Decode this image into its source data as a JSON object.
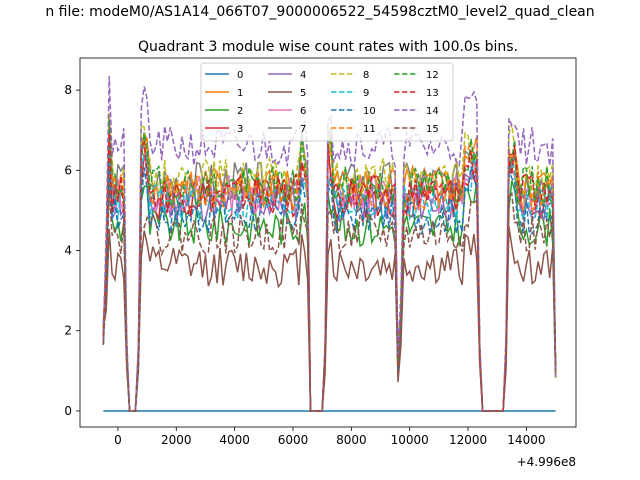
{
  "chart_data": {
    "type": "line",
    "suptitle": "n file: modeM0/AS1A14_066T07_9000006522_54598cztM0_level2_quad_clean",
    "title": "Quadrant 3 module wise count rates with 100.0s bins.",
    "xlabel": "",
    "ylabel": "",
    "x_offset_label": "+4.996e8",
    "xlim": [
      -1300,
      15700
    ],
    "ylim": [
      -0.4,
      8.8
    ],
    "x_ticks": [
      0,
      2000,
      4000,
      6000,
      8000,
      10000,
      12000,
      14000
    ],
    "x_tick_labels": [
      "0",
      "2000",
      "4000",
      "6000",
      "8000",
      "10000",
      "12000",
      "14000"
    ],
    "y_ticks": [
      0,
      2,
      4,
      6,
      8
    ],
    "y_tick_labels": [
      "0",
      "2",
      "4",
      "6",
      "8"
    ],
    "legend_loc": "upper center",
    "legend_ncol": 4,
    "gaps": [
      [
        400,
        600
      ],
      [
        6550,
        7000
      ],
      [
        12500,
        13200
      ]
    ],
    "dip_times": [
      9600,
      9700
    ],
    "series": [
      {
        "name": "0",
        "color": "#1f77b4",
        "dash": false,
        "level": 0.0
      },
      {
        "name": "1",
        "color": "#ff7f0e",
        "dash": false,
        "level": 5.6
      },
      {
        "name": "2",
        "color": "#2ca02c",
        "dash": false,
        "level": 4.6
      },
      {
        "name": "3",
        "color": "#d62728",
        "dash": false,
        "level": 5.3
      },
      {
        "name": "4",
        "color": "#9467bd",
        "dash": false,
        "level": 5.2
      },
      {
        "name": "5",
        "color": "#8c564b",
        "dash": false,
        "level": 3.6
      },
      {
        "name": "6",
        "color": "#e377c2",
        "dash": false,
        "level": 5.4
      },
      {
        "name": "7",
        "color": "#7f7f7f",
        "dash": false,
        "level": 5.7
      },
      {
        "name": "8",
        "color": "#bcbd22",
        "dash": true,
        "level": 5.8
      },
      {
        "name": "9",
        "color": "#17becf",
        "dash": true,
        "level": 5.2
      },
      {
        "name": "10",
        "color": "#1f77b4",
        "dash": true,
        "level": 4.9
      },
      {
        "name": "11",
        "color": "#ff7f0e",
        "dash": true,
        "level": 5.5
      },
      {
        "name": "12",
        "color": "#2ca02c",
        "dash": true,
        "level": 5.6
      },
      {
        "name": "13",
        "color": "#d62728",
        "dash": true,
        "level": 5.4
      },
      {
        "name": "14",
        "color": "#9467bd",
        "dash": true,
        "level": 6.6
      },
      {
        "name": "15",
        "color": "#8c564b",
        "dash": true,
        "level": 4.4
      }
    ]
  }
}
